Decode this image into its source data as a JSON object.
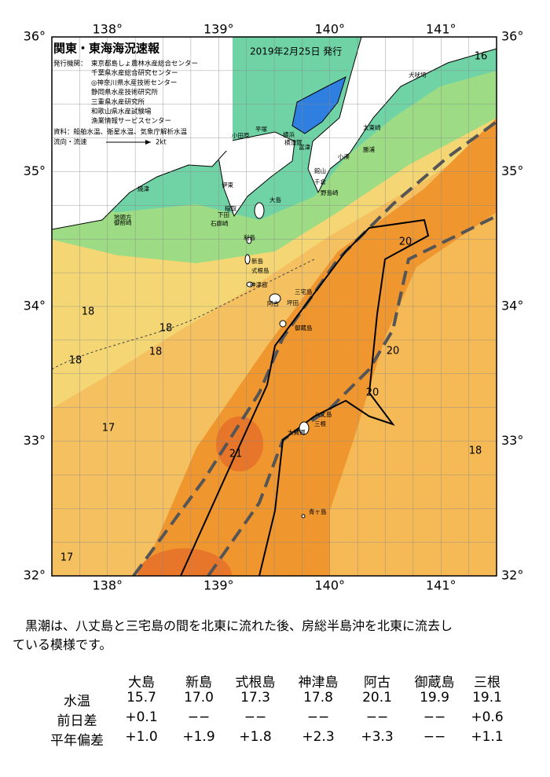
{
  "header": {
    "title": "関東・東海海況速報",
    "date": "2019年2月25日 発行"
  },
  "legend": {
    "agencies_label": "発行機関：",
    "agencies": [
      "東京都島しょ農林水産総合センター",
      "千葉県水産総合研究センター",
      "◎神奈川県水産技術センター",
      "静岡県水産技術研究所",
      "三重県水産研究所",
      "和歌山県水産試験場",
      "漁業情報サービスセンター"
    ],
    "sources": "資料：船舶水温、衛星水温、気象庁解析水温",
    "flow_label": "流向・流速",
    "flow_scale": "2kt"
  },
  "map": {
    "lon_labels": [
      "138°",
      "139°",
      "140°",
      "141°"
    ],
    "lat_labels": [
      "36°",
      "35°",
      "34°",
      "33°",
      "32°"
    ],
    "temperature_labels": [
      16,
      20,
      18,
      18,
      18,
      18,
      20,
      20,
      17,
      21,
      18,
      17
    ],
    "places": [
      "犬吠埼",
      "太東崎",
      "勝浦",
      "小湊",
      "横浜",
      "横須賀",
      "富津",
      "平塚",
      "小田原",
      "館山",
      "千倉",
      "野島崎",
      "大島",
      "伊東",
      "稲取",
      "下田",
      "石廊崎",
      "焼津",
      "御前崎",
      "地頭方",
      "利島",
      "新島",
      "式根島",
      "神津島",
      "三宅島",
      "坪田",
      "阿古",
      "御蔵島",
      "八丈島",
      "三根",
      "大賀郷",
      "青ヶ島"
    ]
  },
  "summary_lines": [
    "黒潮は、八丈島と三宅島の間を北東に流れた後、房総半島沖を北東に流去し",
    "ている模様です。"
  ],
  "table": {
    "columns": [
      "大島",
      "新島",
      "式根島",
      "神津島",
      "阿古",
      "御蔵島",
      "三根"
    ],
    "rows": [
      {
        "label": "水温",
        "cells": [
          "15.7",
          "17.0",
          "17.3",
          "17.8",
          "20.1",
          "19.9",
          "19.1"
        ]
      },
      {
        "label": "前日差",
        "cells": [
          "+0.1",
          "−−",
          "−−",
          "−−",
          "−−",
          "−−",
          "+0.6"
        ]
      },
      {
        "label": "平年偏差",
        "cells": [
          "+1.0",
          "+1.9",
          "+1.8",
          "+2.3",
          "+3.3",
          "−−",
          "+1.1"
        ]
      }
    ]
  }
}
